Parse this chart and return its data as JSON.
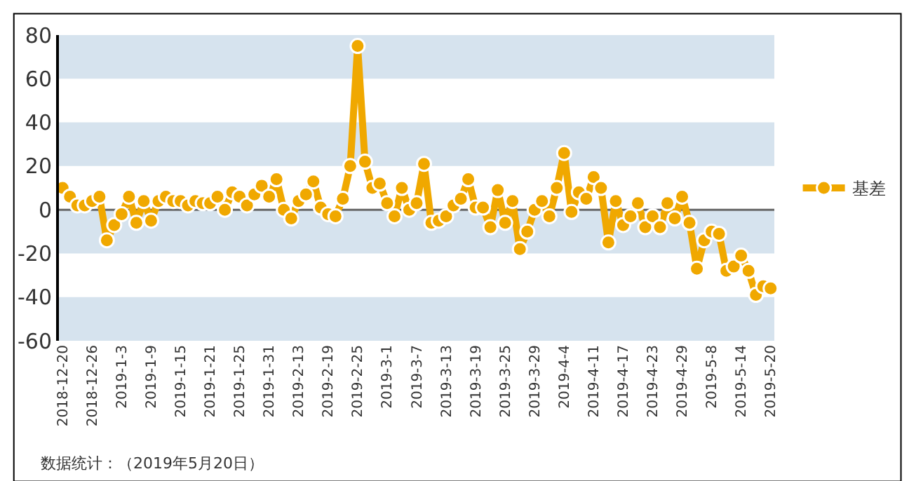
{
  "chart_data": {
    "type": "line",
    "categories": [
      "2018-12-20",
      null,
      null,
      null,
      "2018-12-26",
      null,
      null,
      null,
      "2019-1-3",
      null,
      null,
      null,
      "2019-1-9",
      null,
      null,
      null,
      "2019-1-15",
      null,
      null,
      null,
      "2019-1-21",
      null,
      null,
      null,
      "2019-1-25",
      null,
      null,
      null,
      "2019-1-31",
      null,
      null,
      null,
      "2019-2-13",
      null,
      null,
      null,
      "2019-2-19",
      null,
      null,
      null,
      "2019-2-25",
      null,
      null,
      null,
      "2019-3-1",
      null,
      null,
      null,
      "2019-3-7",
      null,
      null,
      null,
      "2019-3-13",
      null,
      null,
      null,
      "2019-3-19",
      null,
      null,
      null,
      "2019-3-25",
      null,
      null,
      null,
      "2019-3-29",
      null,
      null,
      null,
      "2019-4-4",
      null,
      null,
      null,
      "2019-4-11",
      null,
      null,
      null,
      "2019-4-17",
      null,
      null,
      null,
      "2019-4-23",
      null,
      null,
      null,
      "2019-4-29",
      null,
      null,
      null,
      "2019-5-8",
      null,
      null,
      null,
      "2019-5-14",
      null,
      null,
      null,
      "2019-5-20"
    ],
    "series": [
      {
        "name": "基差",
        "color": "#f0a800",
        "values": [
          10,
          6,
          2,
          2,
          4,
          6,
          -14,
          -7,
          -2,
          6,
          -6,
          4,
          -5,
          4,
          6,
          4,
          4,
          2,
          4,
          3,
          3,
          6,
          0,
          8,
          6,
          2,
          7,
          11,
          6,
          14,
          0,
          -4,
          4,
          7,
          13,
          1,
          -2,
          -3,
          5,
          20,
          75,
          22,
          10,
          12,
          3,
          -3,
          10,
          0,
          3,
          21,
          -6,
          -5,
          -3,
          2,
          5,
          14,
          1,
          1,
          -8,
          9,
          -6,
          4,
          -18,
          -10,
          0,
          4,
          -3,
          10,
          26,
          -1,
          8,
          5,
          15,
          10,
          -15,
          4,
          -7,
          -3,
          3,
          -8,
          -3,
          -8,
          3,
          -4,
          6,
          -6,
          -27,
          -14,
          -10,
          -11,
          -28,
          -26,
          -21,
          -28,
          -39,
          -35,
          -36
        ]
      }
    ],
    "ylim": [
      -60,
      80
    ],
    "yticks": [
      -60,
      -40,
      -20,
      0,
      20,
      40,
      60,
      80
    ],
    "bands": [
      {
        "axis": "y",
        "from": 60,
        "to": 80,
        "color": "#d6e3ee"
      },
      {
        "axis": "y",
        "from": 20,
        "to": 40,
        "color": "#d6e3ee"
      },
      {
        "axis": "y",
        "from": -20,
        "to": 0,
        "color": "#d6e3ee"
      },
      {
        "axis": "y",
        "from": -60,
        "to": -40,
        "color": "#d6e3ee"
      }
    ],
    "ref_lines": [
      {
        "axis": "y",
        "value": 0,
        "color": "#666666"
      }
    ],
    "legend": "right",
    "marker": "circle",
    "line_style": "solid",
    "annotations": [
      "数据统计：（2019年5月20日）"
    ]
  }
}
